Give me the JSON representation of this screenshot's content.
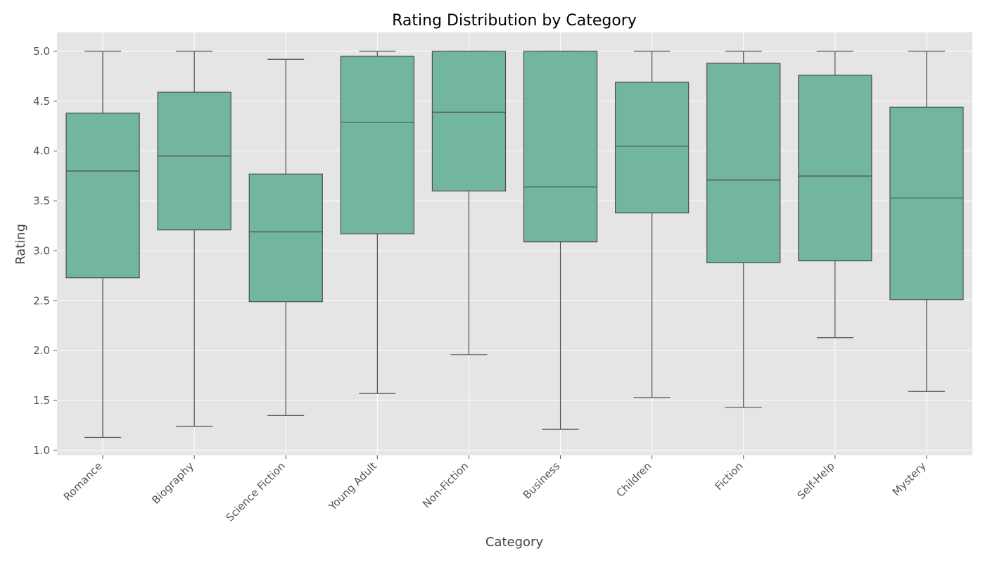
{
  "chart_data": {
    "type": "box",
    "title": "Rating Distribution by Category",
    "xlabel": "Category",
    "ylabel": "Rating",
    "ylim": [
      0.95,
      5.19
    ],
    "yticks": [
      1.0,
      1.5,
      2.0,
      2.5,
      3.0,
      3.5,
      4.0,
      4.5,
      5.0
    ],
    "grid": true,
    "colors": {
      "plot_background": "#e5e5e5",
      "grid": "#ffffff",
      "box_fill": "#72b6a1",
      "box_edge": "#4d4d4d"
    },
    "categories": [
      "Romance",
      "Biography",
      "Science Fiction",
      "Young Adult",
      "Non-Fiction",
      "Business",
      "Children",
      "Fiction",
      "Self-Help",
      "Mystery"
    ],
    "boxes": [
      {
        "category": "Romance",
        "whisker_low": 1.13,
        "q1": 2.73,
        "median": 3.8,
        "q3": 4.38,
        "whisker_high": 5.0
      },
      {
        "category": "Biography",
        "whisker_low": 1.24,
        "q1": 3.21,
        "median": 3.95,
        "q3": 4.59,
        "whisker_high": 5.0
      },
      {
        "category": "Science Fiction",
        "whisker_low": 1.35,
        "q1": 2.49,
        "median": 3.19,
        "q3": 3.77,
        "whisker_high": 4.92
      },
      {
        "category": "Young Adult",
        "whisker_low": 1.57,
        "q1": 3.17,
        "median": 4.29,
        "q3": 4.95,
        "whisker_high": 5.0
      },
      {
        "category": "Non-Fiction",
        "whisker_low": 1.96,
        "q1": 3.6,
        "median": 4.39,
        "q3": 5.0,
        "whisker_high": 5.0
      },
      {
        "category": "Business",
        "whisker_low": 1.21,
        "q1": 3.09,
        "median": 3.64,
        "q3": 5.0,
        "whisker_high": 5.0
      },
      {
        "category": "Children",
        "whisker_low": 1.53,
        "q1": 3.38,
        "median": 4.05,
        "q3": 4.69,
        "whisker_high": 5.0
      },
      {
        "category": "Fiction",
        "whisker_low": 1.43,
        "q1": 2.88,
        "median": 3.71,
        "q3": 4.88,
        "whisker_high": 5.0
      },
      {
        "category": "Self-Help",
        "whisker_low": 2.13,
        "q1": 2.9,
        "median": 3.75,
        "q3": 4.76,
        "whisker_high": 5.0
      },
      {
        "category": "Mystery",
        "whisker_low": 1.59,
        "q1": 2.51,
        "median": 3.53,
        "q3": 4.44,
        "whisker_high": 5.0
      }
    ]
  }
}
